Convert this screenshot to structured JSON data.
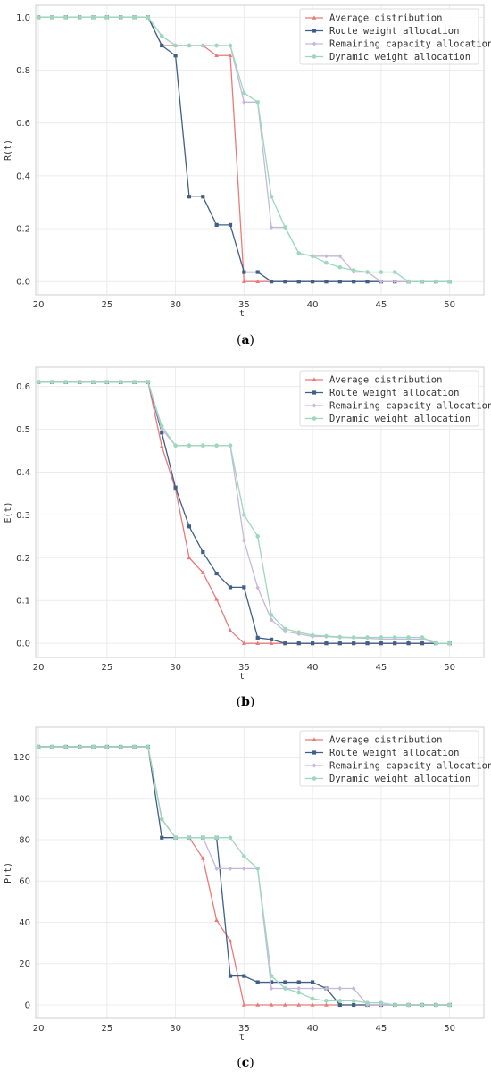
{
  "colors": {
    "average": "#ea7a7a",
    "route": "#3f5f88",
    "remaining": "#c6b7dc",
    "dynamic": "#9dd8bd"
  },
  "chart_data": [
    {
      "type": "line",
      "caption": "(a)",
      "xlabel": "t",
      "ylabel": "R(t)",
      "xlim": [
        19.8,
        52.5
      ],
      "ylim": [
        -0.05,
        1.045
      ],
      "xticks": [
        20,
        25,
        30,
        35,
        40,
        45,
        50
      ],
      "yticks": [
        0.0,
        0.2,
        0.4,
        0.6,
        0.8,
        1.0
      ],
      "ytick_labels": [
        "0.0",
        "0.2",
        "0.4",
        "0.6",
        "0.8",
        "1.0"
      ],
      "legend_position": "top-right",
      "grid": true,
      "x": [
        20,
        21,
        22,
        23,
        24,
        25,
        26,
        27,
        28,
        29,
        30,
        31,
        32,
        33,
        34,
        35,
        36,
        37,
        38,
        39,
        40,
        41,
        42,
        43,
        44,
        45,
        46,
        47,
        48,
        49,
        50
      ],
      "series": [
        {
          "name": "Average distribution",
          "marker": "triangle",
          "values": [
            1,
            1,
            1,
            1,
            1,
            1,
            1,
            1,
            1,
            0.893,
            0.893,
            0.893,
            0.893,
            0.855,
            0.855,
            0,
            0,
            0,
            0,
            0,
            0,
            0,
            0,
            0,
            0,
            0,
            0,
            0,
            0,
            0,
            0
          ]
        },
        {
          "name": "Route weight allocation",
          "marker": "square",
          "values": [
            1,
            1,
            1,
            1,
            1,
            1,
            1,
            1,
            1,
            0.893,
            0.855,
            0.321,
            0.321,
            0.214,
            0.214,
            0.036,
            0.036,
            0,
            0,
            0,
            0,
            0,
            0,
            0,
            0,
            0,
            0,
            0,
            0,
            0,
            0
          ]
        },
        {
          "name": "Remaining capacity allocation",
          "marker": "diamond",
          "values": [
            1,
            1,
            1,
            1,
            1,
            1,
            1,
            1,
            1,
            0.929,
            0.893,
            0.893,
            0.893,
            0.893,
            0.893,
            0.679,
            0.679,
            0.205,
            0.205,
            0.107,
            0.096,
            0.096,
            0.096,
            0.036,
            0.036,
            0,
            0,
            0,
            0,
            0,
            0
          ]
        },
        {
          "name": "Dynamic weight allocation",
          "marker": "circle",
          "values": [
            1,
            1,
            1,
            1,
            1,
            1,
            1,
            1,
            1,
            0.929,
            0.893,
            0.893,
            0.893,
            0.893,
            0.893,
            0.714,
            0.679,
            0.321,
            0.205,
            0.107,
            0.096,
            0.071,
            0.054,
            0.043,
            0.036,
            0.036,
            0.036,
            0,
            0,
            0,
            0
          ]
        }
      ]
    },
    {
      "type": "line",
      "caption": "(b)",
      "xlabel": "t",
      "ylabel": "E(t)",
      "xlim": [
        19.8,
        52.5
      ],
      "ylim": [
        -0.033,
        0.645
      ],
      "xticks": [
        20,
        25,
        30,
        35,
        40,
        45,
        50
      ],
      "yticks": [
        0.0,
        0.1,
        0.2,
        0.3,
        0.4,
        0.5,
        0.6
      ],
      "ytick_labels": [
        "0.0",
        "0.1",
        "0.2",
        "0.3",
        "0.4",
        "0.5",
        "0.6"
      ],
      "legend_position": "top-right",
      "grid": true,
      "x": [
        20,
        21,
        22,
        23,
        24,
        25,
        26,
        27,
        28,
        29,
        30,
        31,
        32,
        33,
        34,
        35,
        36,
        37,
        38,
        39,
        40,
        41,
        42,
        43,
        44,
        45,
        46,
        47,
        48,
        49,
        50
      ],
      "series": [
        {
          "name": "Average distribution",
          "marker": "triangle",
          "values": [
            0.61,
            0.61,
            0.61,
            0.61,
            0.61,
            0.61,
            0.61,
            0.61,
            0.61,
            0.46,
            0.36,
            0.2,
            0.165,
            0.103,
            0.03,
            0,
            0,
            0,
            0,
            0,
            0,
            0,
            0,
            0,
            0,
            0,
            0,
            0,
            0,
            0,
            0
          ]
        },
        {
          "name": "Route weight allocation",
          "marker": "square",
          "values": [
            0.61,
            0.61,
            0.61,
            0.61,
            0.61,
            0.61,
            0.61,
            0.61,
            0.61,
            0.492,
            0.364,
            0.273,
            0.213,
            0.163,
            0.131,
            0.131,
            0.013,
            0.009,
            0,
            0,
            0,
            0,
            0,
            0,
            0,
            0,
            0,
            0,
            0,
            0,
            0
          ]
        },
        {
          "name": "Remaining capacity allocation",
          "marker": "diamond",
          "values": [
            0.61,
            0.61,
            0.61,
            0.61,
            0.61,
            0.61,
            0.61,
            0.61,
            0.61,
            0.5,
            0.462,
            0.462,
            0.462,
            0.462,
            0.462,
            0.24,
            0.13,
            0.055,
            0.028,
            0.022,
            0.016,
            0.016,
            0.014,
            0.013,
            0.012,
            0.01,
            0.01,
            0.01,
            0.01,
            0,
            0
          ]
        },
        {
          "name": "Dynamic weight allocation",
          "marker": "circle",
          "values": [
            0.61,
            0.61,
            0.61,
            0.61,
            0.61,
            0.61,
            0.61,
            0.61,
            0.61,
            0.507,
            0.462,
            0.462,
            0.462,
            0.462,
            0.462,
            0.3,
            0.25,
            0.066,
            0.034,
            0.026,
            0.019,
            0.017,
            0.015,
            0.014,
            0.014,
            0.014,
            0.014,
            0.014,
            0.014,
            0,
            0
          ]
        }
      ]
    },
    {
      "type": "line",
      "caption": "(c)",
      "xlabel": "t",
      "ylabel": "P(t)",
      "xlim": [
        19.8,
        52.5
      ],
      "ylim": [
        -6.5,
        134.5
      ],
      "xticks": [
        20,
        25,
        30,
        35,
        40,
        45,
        50
      ],
      "yticks": [
        0,
        20,
        40,
        60,
        80,
        100,
        120
      ],
      "ytick_labels": [
        "0",
        "20",
        "40",
        "60",
        "80",
        "100",
        "120"
      ],
      "legend_position": "top-right",
      "grid": true,
      "x": [
        20,
        21,
        22,
        23,
        24,
        25,
        26,
        27,
        28,
        29,
        30,
        31,
        32,
        33,
        34,
        35,
        36,
        37,
        38,
        39,
        40,
        41,
        42,
        43,
        44,
        45,
        46,
        47,
        48,
        49,
        50
      ],
      "series": [
        {
          "name": "Average distribution",
          "marker": "triangle",
          "values": [
            125,
            125,
            125,
            125,
            125,
            125,
            125,
            125,
            125,
            90,
            81,
            81,
            71,
            41,
            31,
            0,
            0,
            0,
            0,
            0,
            0,
            0,
            0,
            0,
            0,
            0,
            0,
            0,
            0,
            0,
            0
          ]
        },
        {
          "name": "Route weight allocation",
          "marker": "square",
          "values": [
            125,
            125,
            125,
            125,
            125,
            125,
            125,
            125,
            125,
            81,
            81,
            81,
            81,
            81,
            14,
            14,
            11,
            11,
            11,
            11,
            11,
            8,
            0,
            0,
            0,
            0,
            0,
            0,
            0,
            0,
            0
          ]
        },
        {
          "name": "Remaining capacity allocation",
          "marker": "diamond",
          "values": [
            125,
            125,
            125,
            125,
            125,
            125,
            125,
            125,
            125,
            90,
            81,
            81,
            81,
            66,
            66,
            66,
            66,
            8,
            8,
            8,
            8,
            8,
            8,
            8,
            0,
            0,
            0,
            0,
            0,
            0,
            0
          ]
        },
        {
          "name": "Dynamic weight allocation",
          "marker": "circle",
          "values": [
            125,
            125,
            125,
            125,
            125,
            125,
            125,
            125,
            125,
            90,
            81,
            81,
            81,
            81,
            81,
            72,
            66,
            14,
            8,
            6,
            3,
            2,
            2,
            2,
            1,
            1,
            0,
            0,
            0,
            0,
            0
          ]
        }
      ]
    }
  ]
}
